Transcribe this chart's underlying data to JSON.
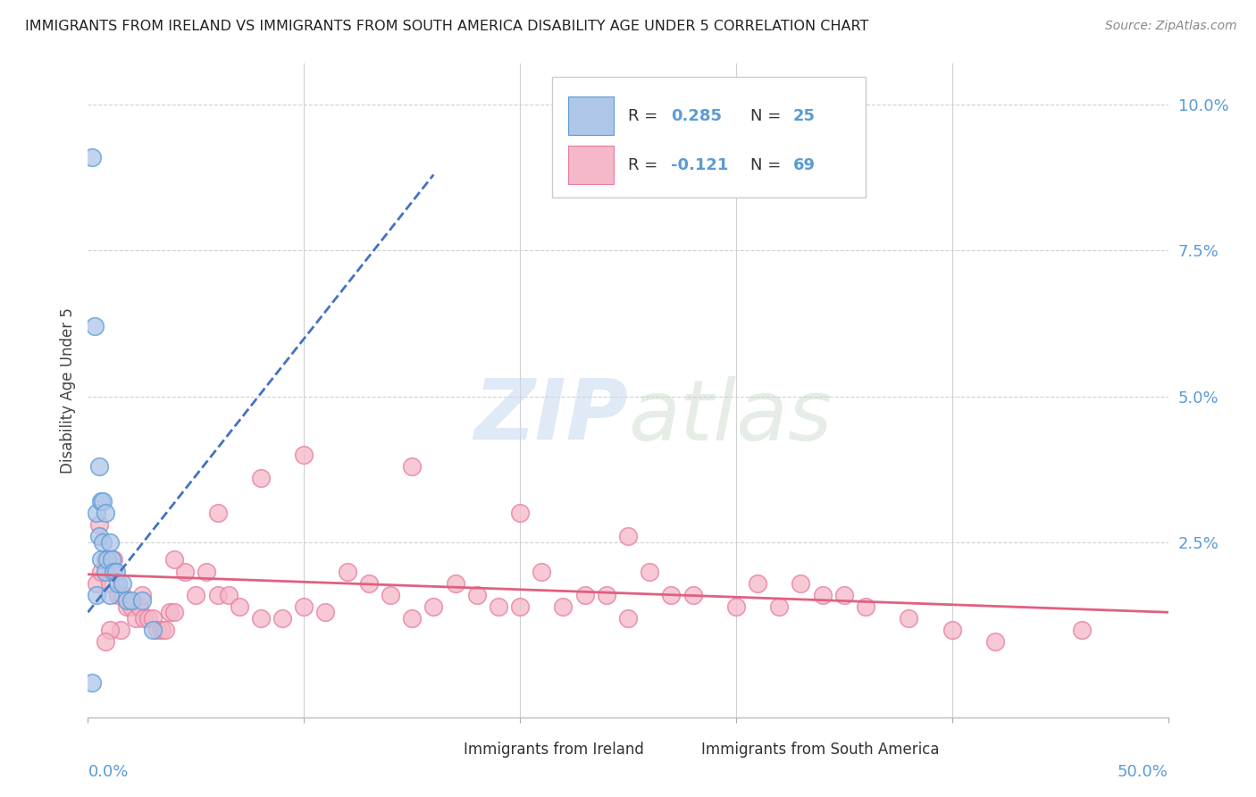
{
  "title": "IMMIGRANTS FROM IRELAND VS IMMIGRANTS FROM SOUTH AMERICA DISABILITY AGE UNDER 5 CORRELATION CHART",
  "source": "Source: ZipAtlas.com",
  "ylabel": "Disability Age Under 5",
  "yticks": [
    0.0,
    0.025,
    0.05,
    0.075,
    0.1
  ],
  "ytick_labels": [
    "",
    "2.5%",
    "5.0%",
    "7.5%",
    "10.0%"
  ],
  "xlim": [
    0.0,
    0.5
  ],
  "ylim": [
    -0.005,
    0.107
  ],
  "watermark_zip": "ZIP",
  "watermark_atlas": "atlas",
  "legend_ireland_r": "0.285",
  "legend_ireland_n": "25",
  "legend_sa_r": "-0.121",
  "legend_sa_n": "69",
  "ireland_color": "#aec6e8",
  "sa_color": "#f4b8c8",
  "ireland_edge_color": "#5b9bd5",
  "sa_edge_color": "#e87ca0",
  "ireland_trend_color": "#4472c4",
  "sa_trend_color": "#e06080",
  "grid_color": "#d0d0d0",
  "background_color": "#ffffff",
  "tick_color": "#5b9bd5",
  "ireland_scatter_x": [
    0.002,
    0.002,
    0.003,
    0.004,
    0.004,
    0.005,
    0.005,
    0.006,
    0.006,
    0.007,
    0.007,
    0.008,
    0.008,
    0.009,
    0.01,
    0.01,
    0.011,
    0.012,
    0.013,
    0.014,
    0.016,
    0.018,
    0.02,
    0.025,
    0.03
  ],
  "ireland_scatter_y": [
    0.091,
    0.001,
    0.062,
    0.03,
    0.016,
    0.026,
    0.038,
    0.032,
    0.022,
    0.032,
    0.025,
    0.03,
    0.02,
    0.022,
    0.025,
    0.016,
    0.022,
    0.02,
    0.02,
    0.018,
    0.018,
    0.015,
    0.015,
    0.015,
    0.01
  ],
  "sa_scatter_x": [
    0.004,
    0.005,
    0.006,
    0.008,
    0.01,
    0.012,
    0.014,
    0.016,
    0.018,
    0.02,
    0.022,
    0.024,
    0.026,
    0.028,
    0.03,
    0.032,
    0.034,
    0.036,
    0.038,
    0.04,
    0.045,
    0.05,
    0.055,
    0.06,
    0.065,
    0.07,
    0.08,
    0.09,
    0.1,
    0.11,
    0.12,
    0.13,
    0.14,
    0.15,
    0.16,
    0.17,
    0.18,
    0.19,
    0.2,
    0.21,
    0.22,
    0.23,
    0.24,
    0.25,
    0.26,
    0.27,
    0.28,
    0.3,
    0.31,
    0.32,
    0.33,
    0.34,
    0.35,
    0.36,
    0.38,
    0.4,
    0.15,
    0.2,
    0.25,
    0.1,
    0.08,
    0.06,
    0.04,
    0.025,
    0.015,
    0.01,
    0.008,
    0.42,
    0.46
  ],
  "sa_scatter_y": [
    0.018,
    0.028,
    0.02,
    0.022,
    0.018,
    0.022,
    0.016,
    0.016,
    0.014,
    0.014,
    0.012,
    0.014,
    0.012,
    0.012,
    0.012,
    0.01,
    0.01,
    0.01,
    0.013,
    0.013,
    0.02,
    0.016,
    0.02,
    0.016,
    0.016,
    0.014,
    0.012,
    0.012,
    0.014,
    0.013,
    0.02,
    0.018,
    0.016,
    0.012,
    0.014,
    0.018,
    0.016,
    0.014,
    0.014,
    0.02,
    0.014,
    0.016,
    0.016,
    0.012,
    0.02,
    0.016,
    0.016,
    0.014,
    0.018,
    0.014,
    0.018,
    0.016,
    0.016,
    0.014,
    0.012,
    0.01,
    0.038,
    0.03,
    0.026,
    0.04,
    0.036,
    0.03,
    0.022,
    0.016,
    0.01,
    0.01,
    0.008,
    0.008,
    0.01
  ],
  "ireland_trend_x": [
    0.0,
    0.16
  ],
  "ireland_trend_y": [
    0.013,
    0.088
  ],
  "sa_trend_x": [
    0.0,
    0.5
  ],
  "sa_trend_y": [
    0.0195,
    0.013
  ]
}
